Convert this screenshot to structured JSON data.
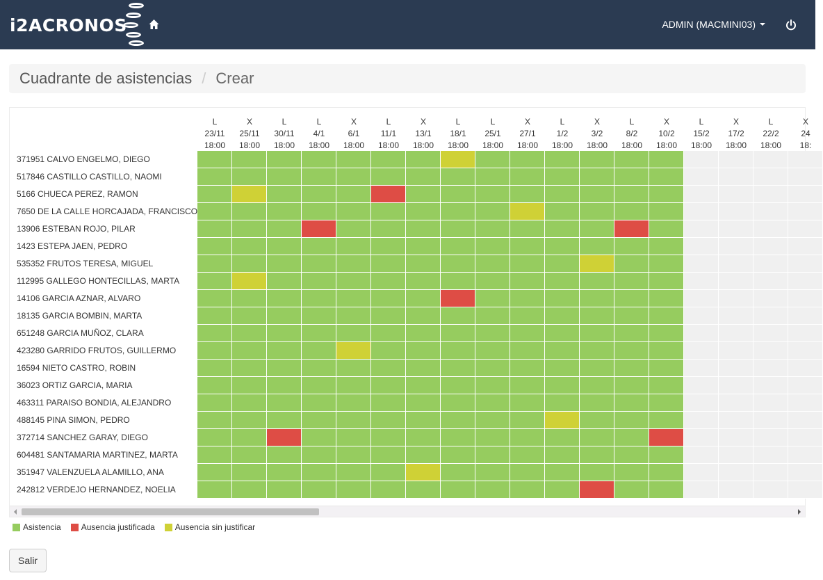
{
  "brand": {
    "logo_text": "i2ACRONOS"
  },
  "nav": {
    "user_label": "ADMIN (MACMINI03)"
  },
  "breadcrumb": {
    "first": "Cuadrante de asistencias",
    "separator": "/",
    "second": "Crear"
  },
  "columns": [
    {
      "day": "L",
      "date": "23/11",
      "time": "18:00"
    },
    {
      "day": "X",
      "date": "25/11",
      "time": "18:00"
    },
    {
      "day": "L",
      "date": "30/11",
      "time": "18:00"
    },
    {
      "day": "L",
      "date": "4/1",
      "time": "18:00"
    },
    {
      "day": "X",
      "date": "6/1",
      "time": "18:00"
    },
    {
      "day": "L",
      "date": "11/1",
      "time": "18:00"
    },
    {
      "day": "X",
      "date": "13/1",
      "time": "18:00"
    },
    {
      "day": "L",
      "date": "18/1",
      "time": "18:00"
    },
    {
      "day": "L",
      "date": "25/1",
      "time": "18:00"
    },
    {
      "day": "X",
      "date": "27/1",
      "time": "18:00"
    },
    {
      "day": "L",
      "date": "1/2",
      "time": "18:00"
    },
    {
      "day": "X",
      "date": "3/2",
      "time": "18:00"
    },
    {
      "day": "L",
      "date": "8/2",
      "time": "18:00"
    },
    {
      "day": "X",
      "date": "10/2",
      "time": "18:00"
    },
    {
      "day": "L",
      "date": "15/2",
      "time": "18:00"
    },
    {
      "day": "X",
      "date": "17/2",
      "time": "18:00"
    },
    {
      "day": "L",
      "date": "22/2",
      "time": "18:00"
    },
    {
      "day": "X",
      "date": "24",
      "time": "18:"
    }
  ],
  "filled_columns": 14,
  "employees": [
    {
      "name": "371951 CALVO ENGELMO, DIEGO",
      "marks": {
        "7": "y"
      }
    },
    {
      "name": "517846 CASTILLO CASTILLO, NAOMI",
      "marks": {}
    },
    {
      "name": "5166 CHUECA PEREZ, RAMON",
      "marks": {
        "1": "y",
        "5": "r"
      }
    },
    {
      "name": "7650 DE LA CALLE HORCAJADA, FRANCISCO",
      "marks": {
        "9": "y"
      }
    },
    {
      "name": "13906 ESTEBAN ROJO, PILAR",
      "marks": {
        "3": "r",
        "12": "r"
      }
    },
    {
      "name": "1423 ESTEPA JAEN, PEDRO",
      "marks": {}
    },
    {
      "name": "535352 FRUTOS TERESA, MIGUEL",
      "marks": {
        "11": "y"
      }
    },
    {
      "name": "112995 GALLEGO HONTECILLAS, MARTA",
      "marks": {
        "1": "y"
      }
    },
    {
      "name": "14106 GARCIA AZNAR, ALVARO",
      "marks": {
        "7": "r"
      }
    },
    {
      "name": "18135 GARCIA BOMBIN, MARTA",
      "marks": {}
    },
    {
      "name": "651248 GARCIA MUÑOZ, CLARA",
      "marks": {}
    },
    {
      "name": "423280 GARRIDO FRUTOS, GUILLERMO",
      "marks": {
        "4": "y"
      }
    },
    {
      "name": "16594 NIETO CASTRO, ROBIN",
      "marks": {}
    },
    {
      "name": "36023 ORTIZ GARCIA, MARIA",
      "marks": {}
    },
    {
      "name": "463311 PARAISO BONDIA, ALEJANDRO",
      "marks": {}
    },
    {
      "name": "488145 PINA SIMON, PEDRO",
      "marks": {
        "10": "y"
      }
    },
    {
      "name": "372714 SANCHEZ GARAY, DIEGO",
      "marks": {
        "2": "r",
        "13": "r"
      }
    },
    {
      "name": "604481 SANTAMARIA MARTINEZ, MARTA",
      "marks": {}
    },
    {
      "name": "351947 VALENZUELA ALAMILLO, ANA",
      "marks": {
        "6": "y"
      }
    },
    {
      "name": "242812 VERDEJO HERNANDEZ, NOELIA",
      "marks": {
        "11": "r"
      }
    }
  ],
  "legend": [
    {
      "key": "g",
      "label": "Asistencia",
      "color": "#96cc5f"
    },
    {
      "key": "r",
      "label": "Ausencia justificada",
      "color": "#de4d45"
    },
    {
      "key": "y",
      "label": "Ausencia sin justificar",
      "color": "#cfd136"
    }
  ],
  "buttons": {
    "exit_label": "Salir"
  },
  "icons": {
    "home": "home-icon",
    "power": "power-icon",
    "caret": "caret-down-icon"
  }
}
